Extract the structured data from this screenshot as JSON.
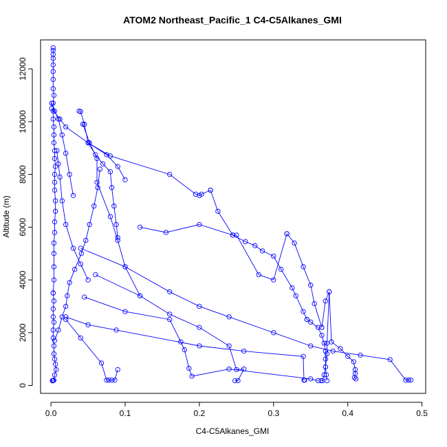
{
  "chart_data": {
    "type": "line",
    "title": "ATOM2 Northeast_Pacific_1 C4-C5Alkanes_GMI",
    "xlabel": "C4-C5Alkanes_GMI",
    "ylabel": "Altitude (m)",
    "xlim": [
      -0.014,
      0.505
    ],
    "ylim": [
      -300,
      13100
    ],
    "x_ticks": [
      "0.0",
      "0.1",
      "0.2",
      "0.3",
      "0.4",
      "0.5"
    ],
    "y_ticks": [
      "0",
      "2000",
      "4000",
      "6000",
      "8000",
      "10000",
      "12000"
    ],
    "x_tick_values": [
      0,
      0.1,
      0.2,
      0.3,
      0.4,
      0.5
    ],
    "y_tick_values": [
      0,
      2000,
      4000,
      6000,
      8000,
      10000,
      12000
    ],
    "grid": false,
    "series_color": "#0000FF",
    "series": [
      {
        "x": [
          0.003,
          0.003,
          0.003,
          0.003,
          0.003,
          0.003,
          0.003,
          0.003,
          0.004,
          0.003,
          0.003,
          0.003,
          0.004,
          0.004,
          0.004,
          0.005,
          0.005,
          0.006,
          0.005,
          0.005,
          0.005,
          0.006,
          0.006,
          0.005,
          0.005,
          0.004,
          0.004,
          0.004,
          0.004,
          0.003
        ],
        "y": [
          12800,
          12700,
          12550,
          12400,
          12150,
          11900,
          11600,
          11250,
          11000,
          10700,
          10400,
          10100,
          9800,
          9500,
          9200,
          8900,
          8600,
          8300,
          8000,
          7700,
          7400,
          7000,
          6600,
          6200,
          5800,
          5400,
          5000,
          4500,
          4000,
          3500
        ]
      },
      {
        "x": [
          0.003,
          0.004,
          0.003,
          0.003,
          0.004,
          0.003,
          0.003,
          0.004,
          0.004,
          0.005,
          0.006,
          0.007,
          0.005,
          0.004,
          0.003,
          0.002,
          0.002,
          0.002
        ],
        "y": [
          3500,
          3200,
          2900,
          2600,
          2400,
          2100,
          1800,
          1500,
          1200,
          1000,
          800,
          600,
          400,
          200,
          180,
          180,
          180,
          180
        ]
      },
      {
        "x": [
          0.008,
          0.01,
          0.012,
          0.015,
          0.02,
          0.03,
          0.04,
          0.05
        ],
        "y": [
          8900,
          8400,
          7900,
          7000,
          6100,
          5200,
          4600,
          4000
        ]
      },
      {
        "x": [
          0.005,
          0.01,
          0.015,
          0.02,
          0.022,
          0.025,
          0.032,
          0.041,
          0.047,
          0.052,
          0.058,
          0.063,
          0.066
        ],
        "y": [
          1700,
          2100,
          2600,
          3000,
          3400,
          3900,
          4400,
          5000,
          5500,
          6100,
          6800,
          7500,
          8200
        ]
      },
      {
        "x": [
          0.043,
          0.052,
          0.062,
          0.062,
          0.08,
          0.09,
          0.1,
          0.12
        ],
        "y": [
          9900,
          9200,
          8600,
          7700,
          6400,
          5500,
          4500,
          3400
        ]
      },
      {
        "x": [
          0.001,
          0.012,
          0.02,
          0.05,
          0.075,
          0.09,
          0.1
        ],
        "y": [
          10500,
          10100,
          9800,
          9200,
          8750,
          8300,
          7800
        ]
      },
      {
        "x": [
          0.001,
          0.005,
          0.01,
          0.015,
          0.02,
          0.025,
          0.03
        ],
        "y": [
          10700,
          10400,
          10100,
          9500,
          8800,
          8000,
          7200
        ]
      },
      {
        "x": [
          0.038,
          0.04,
          0.045,
          0.05,
          0.06,
          0.07,
          0.08,
          0.082,
          0.085,
          0.088,
          0.09
        ],
        "y": [
          10400,
          10380,
          9900,
          9200,
          8750,
          8400,
          8100,
          7500,
          6800,
          6100,
          5600
        ]
      },
      {
        "x": [
          0.05,
          0.08,
          0.16,
          0.195,
          0.2,
          0.203,
          0.215
        ],
        "y": [
          9200,
          8700,
          8000,
          7250,
          7200,
          7250,
          7400
        ]
      },
      {
        "x": [
          0.215,
          0.225,
          0.245,
          0.262,
          0.275,
          0.285,
          0.3,
          0.31,
          0.325,
          0.33,
          0.34,
          0.345
        ],
        "y": [
          7400,
          6600,
          5700,
          5450,
          5300,
          5100,
          4900,
          4400,
          3700,
          3400,
          2800,
          2500
        ]
      },
      {
        "x": [
          0.12,
          0.155,
          0.2,
          0.245,
          0.25,
          0.28,
          0.3,
          0.318
        ],
        "y": [
          6000,
          5800,
          6100,
          5700,
          5700,
          4200,
          4000,
          5750
        ]
      },
      {
        "x": [
          0.318,
          0.328,
          0.34,
          0.35,
          0.355,
          0.365
        ],
        "y": [
          5750,
          5400,
          4500,
          3800,
          3100,
          2200
        ]
      },
      {
        "x": [
          0.345,
          0.35,
          0.36,
          0.365,
          0.368,
          0.37,
          0.37,
          0.37,
          0.371,
          0.372
        ],
        "y": [
          2500,
          2400,
          2200,
          1900,
          1600,
          1300,
          1000,
          700,
          400,
          180
        ]
      },
      {
        "x": [
          0.365,
          0.37,
          0.375,
          0.372,
          0.372,
          0.37,
          0.368,
          0.366,
          0.364
        ],
        "y": [
          2200,
          3200,
          3550,
          1600,
          1200,
          700,
          400,
          180,
          180
        ]
      },
      {
        "x": [
          0.375,
          0.378,
          0.39,
          0.4,
          0.408,
          0.41,
          0.41,
          0.409,
          0.411
        ],
        "y": [
          3550,
          1650,
          1400,
          1100,
          900,
          600,
          450,
          300,
          250
        ]
      },
      {
        "x": [
          0.04,
          0.1,
          0.16,
          0.2,
          0.24,
          0.3,
          0.35,
          0.38,
          0.417,
          0.457,
          0.478,
          0.482,
          0.485
        ],
        "y": [
          5200,
          4500,
          3550,
          3000,
          2600,
          2000,
          1500,
          1300,
          1150,
          980,
          200,
          200,
          200
        ]
      },
      {
        "x": [
          0.06,
          0.12,
          0.16,
          0.2,
          0.24,
          0.25,
          0.26,
          0.252,
          0.248
        ],
        "y": [
          4200,
          3400,
          2700,
          2200,
          1500,
          600,
          620,
          180,
          180
        ]
      },
      {
        "x": [
          0.045,
          0.1,
          0.16,
          0.175,
          0.18,
          0.186,
          0.19,
          0.24,
          0.35,
          0.36
        ],
        "y": [
          3350,
          2800,
          2500,
          1650,
          1350,
          650,
          350,
          620,
          250,
          180
        ]
      },
      {
        "x": [
          0.02,
          0.05,
          0.088,
          0.2,
          0.26,
          0.34,
          0.341,
          0.342
        ],
        "y": [
          2600,
          2300,
          2100,
          1500,
          1300,
          1100,
          200,
          200
        ]
      },
      {
        "x": [
          0.02,
          0.04,
          0.068,
          0.075,
          0.078,
          0.082,
          0.086,
          0.09
        ],
        "y": [
          2500,
          1800,
          850,
          200,
          200,
          200,
          200,
          600
        ]
      }
    ]
  }
}
